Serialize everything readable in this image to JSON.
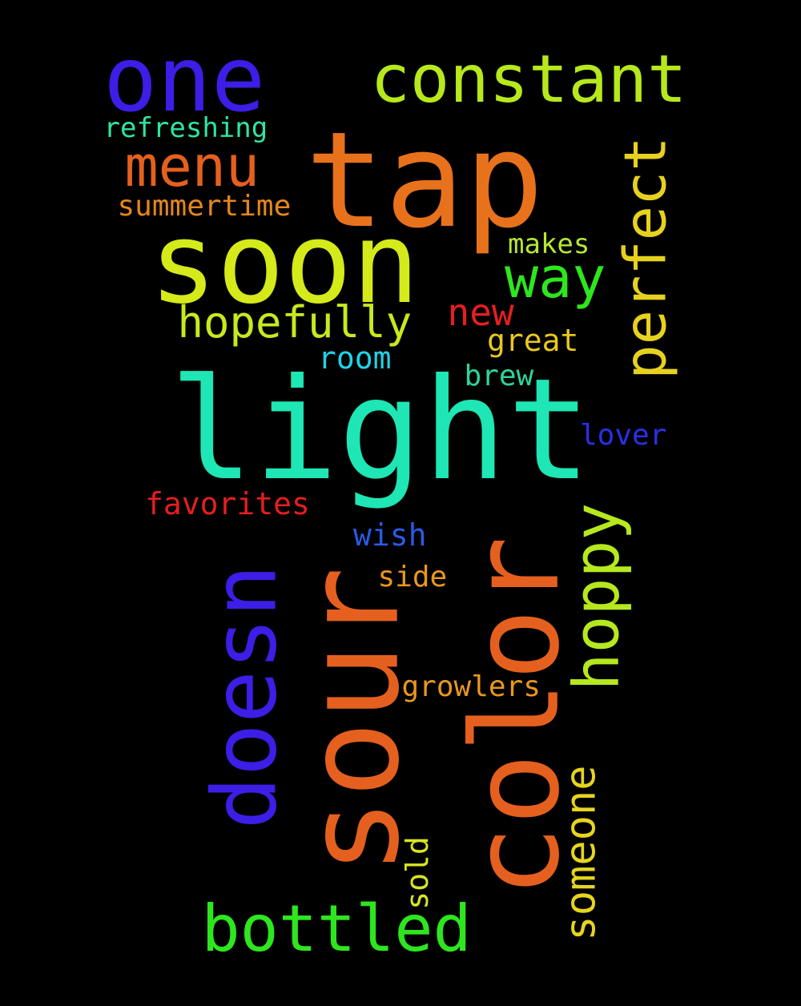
{
  "words": [
    {
      "text": "tap",
      "color": "#e8721c",
      "rotate": false
    },
    {
      "text": "one",
      "color": "#3c1ee6",
      "rotate": false
    },
    {
      "text": "constant",
      "color": "#b7e81c",
      "rotate": false
    },
    {
      "text": "refreshing",
      "color": "#2ee6a0",
      "rotate": false
    },
    {
      "text": "menu",
      "color": "#e5601e",
      "rotate": false
    },
    {
      "text": "summertime",
      "color": "#e5861e",
      "rotate": false
    },
    {
      "text": "soon",
      "color": "#d4ea1a",
      "rotate": false
    },
    {
      "text": "perfect",
      "color": "#e6d21e",
      "rotate": true
    },
    {
      "text": "makes",
      "color": "#b6e830",
      "rotate": false
    },
    {
      "text": "way",
      "color": "#2ee61e",
      "rotate": false
    },
    {
      "text": "new",
      "color": "#e61e1e",
      "rotate": false
    },
    {
      "text": "hopefully",
      "color": "#c9e81e",
      "rotate": false
    },
    {
      "text": "great",
      "color": "#e8c81e",
      "rotate": false
    },
    {
      "text": "room",
      "color": "#1ed4e6",
      "rotate": false
    },
    {
      "text": "brew",
      "color": "#2ed49a",
      "rotate": false
    },
    {
      "text": "light",
      "color": "#1ee6b4",
      "rotate": false
    },
    {
      "text": "lover",
      "color": "#2a30e6",
      "rotate": false
    },
    {
      "text": "favorites",
      "color": "#e61e1e",
      "rotate": false
    },
    {
      "text": "wish",
      "color": "#2a5ae6",
      "rotate": false
    },
    {
      "text": "hoppy",
      "color": "#b6e81e",
      "rotate": true
    },
    {
      "text": "side",
      "color": "#e8981e",
      "rotate": false
    },
    {
      "text": "doesn",
      "color": "#3c1ee6",
      "rotate": true
    },
    {
      "text": "sour",
      "color": "#e5601e",
      "rotate": true
    },
    {
      "text": "color",
      "color": "#e5601e",
      "rotate": true
    },
    {
      "text": "growlers",
      "color": "#e8981e",
      "rotate": false
    },
    {
      "text": "someone",
      "color": "#e6d41e",
      "rotate": true
    },
    {
      "text": "sold",
      "color": "#d8e61e",
      "rotate": true
    },
    {
      "text": "bottled",
      "color": "#2ee61e",
      "rotate": false
    }
  ]
}
